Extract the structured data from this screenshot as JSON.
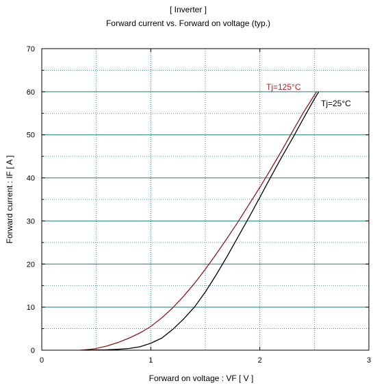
{
  "chart_data": {
    "type": "line",
    "title": "[ Inverter ]",
    "subtitle": "Forward current  vs.  Forward on voltage  (typ.)",
    "xlabel": "Forward on voltage  :  VF  [ V ]",
    "ylabel": "Forward current  :  IF  [ A ]",
    "xlim": [
      0,
      3
    ],
    "ylim": [
      0,
      70
    ],
    "x_ticks": [
      0,
      1,
      2,
      3
    ],
    "y_ticks": [
      0,
      10,
      20,
      30,
      40,
      50,
      60,
      70
    ],
    "grid": true,
    "series": [
      {
        "name": "Tj=125°C",
        "color": "#8b1a1a",
        "label_color": "#b02020",
        "x": [
          0.35,
          0.45,
          0.5,
          0.6,
          0.7,
          0.8,
          0.9,
          1.0,
          1.1,
          1.2,
          1.3,
          1.4,
          1.5,
          1.6,
          1.7,
          1.8,
          1.9,
          2.0,
          2.1,
          2.2,
          2.3,
          2.4,
          2.52
        ],
        "values": [
          0,
          0.2,
          0.4,
          1.0,
          1.8,
          2.8,
          4.0,
          5.5,
          7.5,
          9.8,
          12.5,
          15.5,
          18.8,
          22.3,
          26.0,
          29.8,
          33.8,
          37.8,
          42.0,
          46.3,
          50.8,
          55.2,
          60.0
        ]
      },
      {
        "name": "Tj=25°C",
        "color": "#000000",
        "label_color": "#000000",
        "x": [
          0.4,
          0.5,
          0.6,
          0.7,
          0.8,
          0.9,
          1.0,
          1.1,
          1.2,
          1.3,
          1.4,
          1.5,
          1.6,
          1.7,
          1.8,
          1.9,
          2.0,
          2.1,
          2.2,
          2.3,
          2.4,
          2.5,
          2.54
        ],
        "values": [
          0,
          0.05,
          0.1,
          0.2,
          0.4,
          0.8,
          1.6,
          2.8,
          4.8,
          7.2,
          10.0,
          13.5,
          17.5,
          21.8,
          26.3,
          30.8,
          35.5,
          40.2,
          44.8,
          49.2,
          53.8,
          58.3,
          60.0
        ]
      }
    ]
  }
}
